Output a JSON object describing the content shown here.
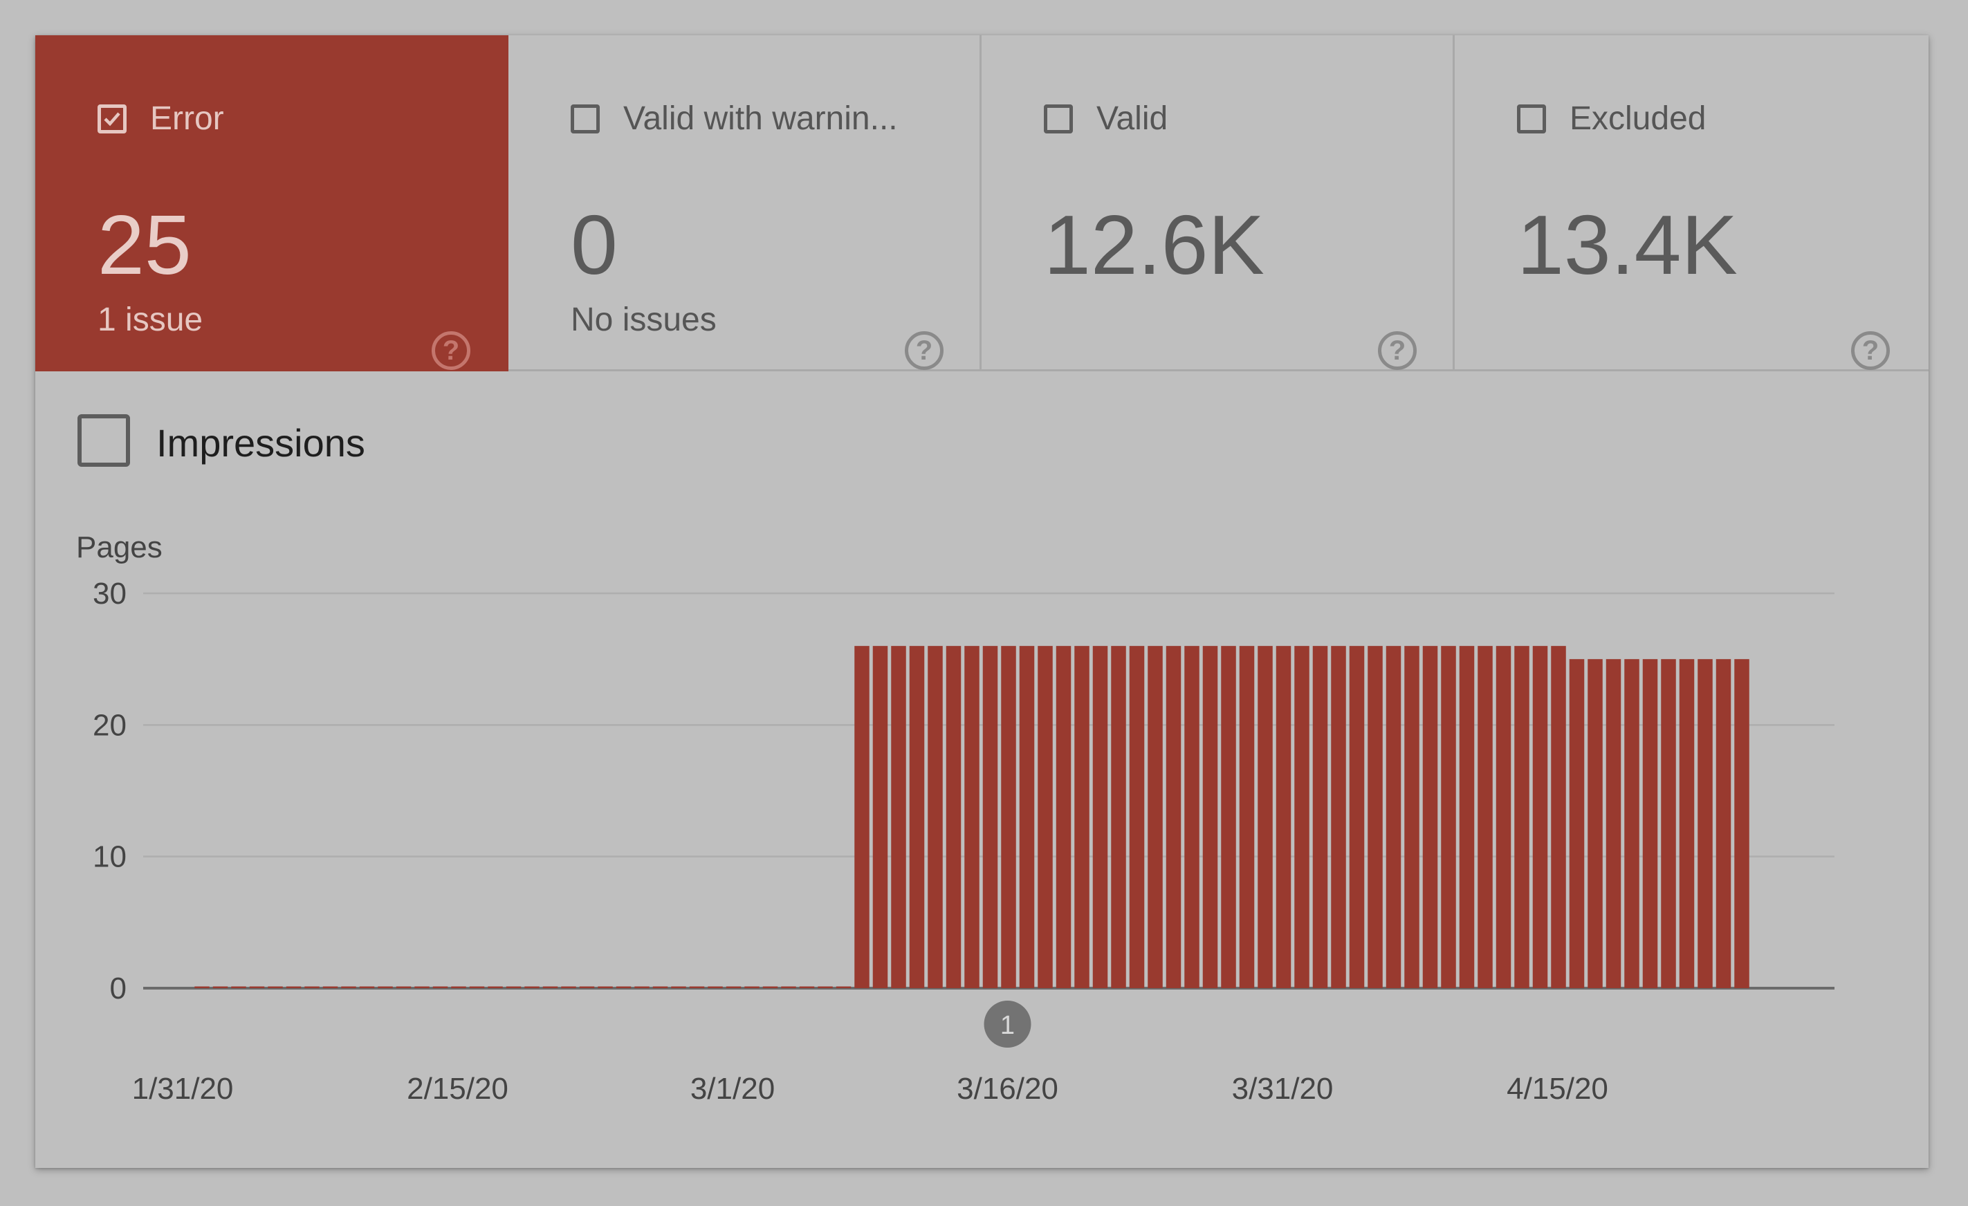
{
  "tabs": [
    {
      "label": "Error",
      "value": "25",
      "sub": "1 issue",
      "checked": true
    },
    {
      "label": "Valid with warnin...",
      "value": "0",
      "sub": "No issues",
      "checked": false
    },
    {
      "label": "Valid",
      "value": "12.6K",
      "sub": "",
      "checked": false
    },
    {
      "label": "Excluded",
      "value": "13.4K",
      "sub": "",
      "checked": false
    }
  ],
  "help_glyph": "?",
  "impressions": {
    "label": "Impressions",
    "checked": false
  },
  "colors": {
    "error": "#993a2f",
    "background": "#bfbfbf",
    "gridline": "#aeaeae",
    "annotation": "#737373"
  },
  "chart_data": {
    "type": "bar",
    "ylabel": "Pages",
    "ylim": [
      0,
      30
    ],
    "yticks": [
      0,
      10,
      20,
      30
    ],
    "start_date": "1/31/20",
    "xtick_labels": [
      "1/31/20",
      "2/15/20",
      "3/1/20",
      "3/16/20",
      "3/31/20",
      "4/15/20"
    ],
    "values": [
      0,
      0,
      0,
      0,
      0,
      0,
      0,
      0,
      0,
      0,
      0,
      0,
      0,
      0,
      0,
      0,
      0,
      0,
      0,
      0,
      0,
      0,
      0,
      0,
      0,
      0,
      0,
      0,
      0,
      0,
      0,
      0,
      0,
      0,
      0,
      0,
      26,
      26,
      26,
      26,
      26,
      26,
      26,
      26,
      26,
      26,
      26,
      26,
      26,
      26,
      26,
      26,
      26,
      26,
      26,
      26,
      26,
      26,
      26,
      26,
      26,
      26,
      26,
      26,
      26,
      26,
      26,
      26,
      26,
      26,
      26,
      26,
      26,
      26,
      26,
      25,
      25,
      25,
      25,
      25,
      25,
      25,
      25,
      25,
      25
    ],
    "grid": true,
    "annotations": [
      {
        "date": "3/16/20",
        "label": "1"
      }
    ]
  }
}
